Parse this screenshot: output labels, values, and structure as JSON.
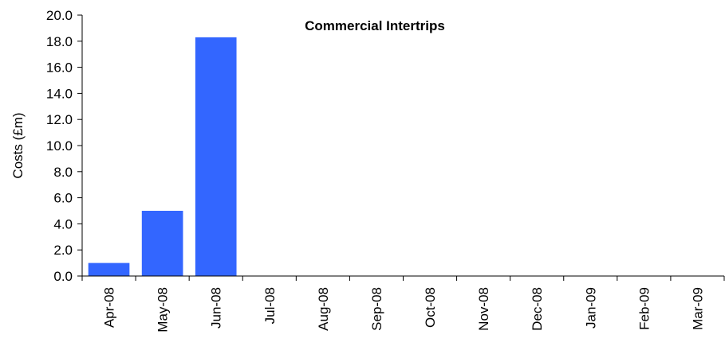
{
  "chart_data": {
    "type": "bar",
    "title": "Commercial Intertrips",
    "xlabel": "",
    "ylabel": "Costs (£m)",
    "categories": [
      "Apr-08",
      "May-08",
      "Jun-08",
      "Jul-08",
      "Aug-08",
      "Sep-08",
      "Oct-08",
      "Nov-08",
      "Dec-08",
      "Jan-09",
      "Feb-09",
      "Mar-09"
    ],
    "values": [
      1.0,
      5.0,
      18.3,
      0,
      0,
      0,
      0,
      0,
      0,
      0,
      0,
      0
    ],
    "ylim": [
      0,
      20
    ],
    "yticks": [
      "0.0",
      "2.0",
      "4.0",
      "6.0",
      "8.0",
      "10.0",
      "12.0",
      "14.0",
      "16.0",
      "18.0",
      "20.0"
    ],
    "bar_color": "#3366ff",
    "grid": false,
    "legend": "none"
  }
}
